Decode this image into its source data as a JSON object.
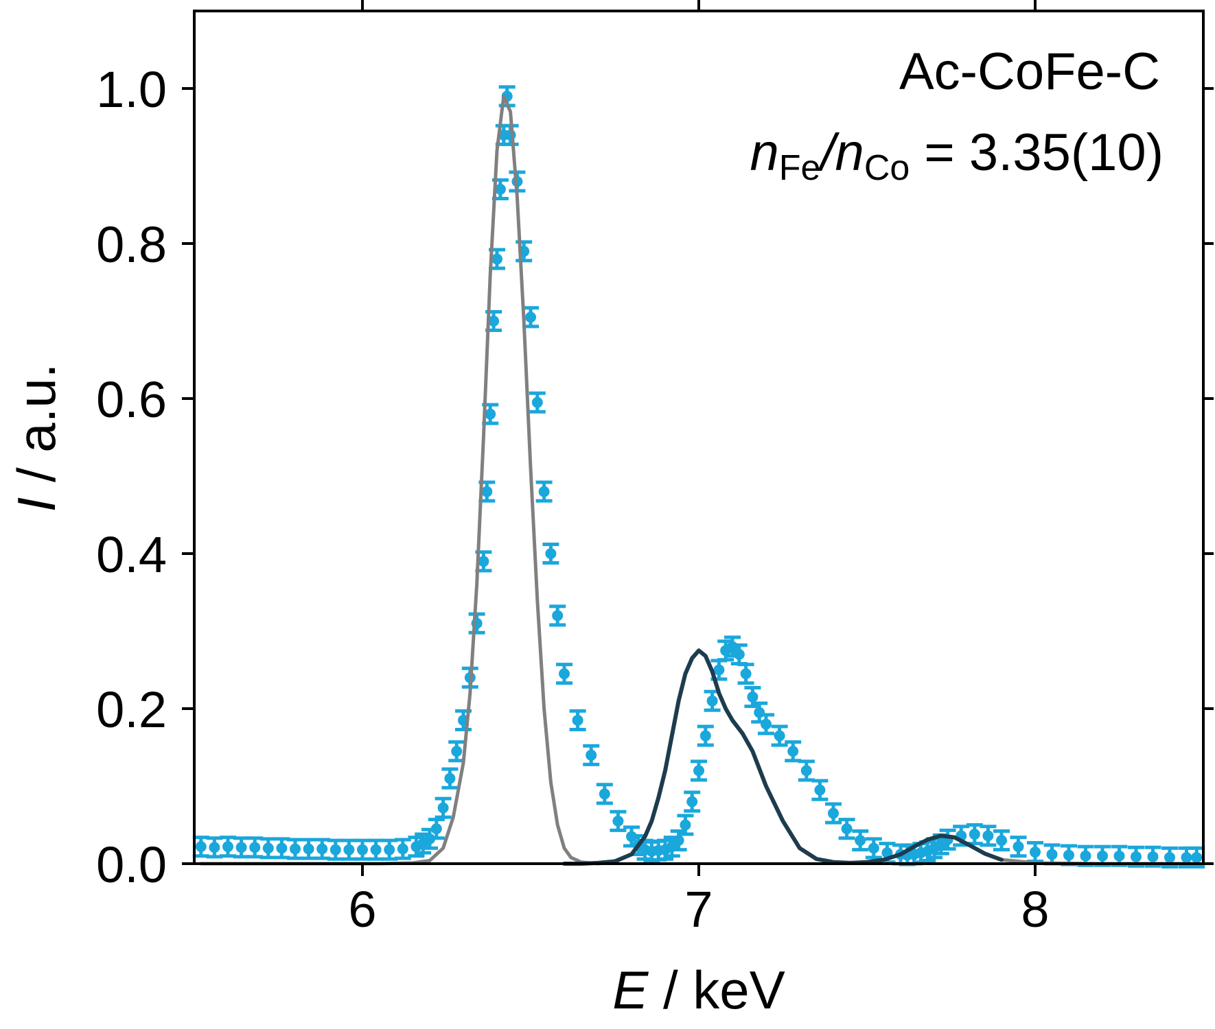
{
  "chart_data": {
    "type": "line",
    "xlabel": {
      "italic": "E",
      "rest": " / keV"
    },
    "ylabel": {
      "italic": "I",
      "rest": " / a.u."
    },
    "xlim": [
      5.5,
      8.5
    ],
    "ylim": [
      0.0,
      1.1
    ],
    "xticks": [
      6,
      7,
      8
    ],
    "xtick_labels": [
      "6",
      "7",
      "8"
    ],
    "yticks": [
      0.0,
      0.2,
      0.4,
      0.6,
      0.8,
      1.0
    ],
    "ytick_labels": [
      "0.0",
      "0.2",
      "0.4",
      "0.6",
      "0.8",
      "1.0"
    ],
    "grid": false,
    "annotations": {
      "sample": "Ac-CoFe-C",
      "ratio": {
        "n1": "n",
        "sub1": "Fe",
        "slash": "/",
        "n2": "n",
        "sub2": "Co",
        "value": " = 3.35(10)"
      }
    },
    "colors": {
      "data": "#1aa7dc",
      "fit_total": "#808080",
      "fit_fe": "#1d3c4e"
    },
    "series": [
      {
        "kind": "errorbar-points",
        "x": [
          5.52,
          5.56,
          5.6,
          5.64,
          5.68,
          5.72,
          5.76,
          5.8,
          5.84,
          5.88,
          5.92,
          5.96,
          6.0,
          6.04,
          6.08,
          6.12,
          6.16,
          6.18,
          6.2,
          6.22,
          6.24,
          6.26,
          6.28,
          6.3,
          6.32,
          6.34,
          6.36,
          6.37,
          6.38,
          6.39,
          6.4,
          6.41,
          6.42,
          6.43,
          6.44,
          6.46,
          6.48,
          6.5,
          6.52,
          6.54,
          6.56,
          6.58,
          6.6,
          6.64,
          6.68,
          6.72,
          6.76,
          6.8,
          6.82,
          6.84,
          6.86,
          6.88,
          6.9,
          6.92,
          6.94,
          6.96,
          6.98,
          7.0,
          7.02,
          7.04,
          7.06,
          7.08,
          7.1,
          7.12,
          7.14,
          7.16,
          7.18,
          7.2,
          7.24,
          7.28,
          7.32,
          7.36,
          7.4,
          7.44,
          7.48,
          7.52,
          7.56,
          7.6,
          7.62,
          7.64,
          7.66,
          7.68,
          7.7,
          7.72,
          7.74,
          7.78,
          7.82,
          7.86,
          7.9,
          7.95,
          8.0,
          8.05,
          8.1,
          8.15,
          8.2,
          8.25,
          8.3,
          8.35,
          8.4,
          8.45,
          8.48
        ],
        "y": [
          0.022,
          0.021,
          0.022,
          0.021,
          0.021,
          0.02,
          0.02,
          0.019,
          0.019,
          0.019,
          0.018,
          0.018,
          0.018,
          0.018,
          0.018,
          0.019,
          0.022,
          0.026,
          0.032,
          0.045,
          0.072,
          0.11,
          0.145,
          0.185,
          0.24,
          0.31,
          0.39,
          0.48,
          0.58,
          0.7,
          0.78,
          0.87,
          0.94,
          0.99,
          0.94,
          0.88,
          0.79,
          0.705,
          0.595,
          0.48,
          0.4,
          0.32,
          0.245,
          0.185,
          0.14,
          0.09,
          0.055,
          0.035,
          0.024,
          0.018,
          0.016,
          0.017,
          0.018,
          0.022,
          0.03,
          0.05,
          0.08,
          0.12,
          0.165,
          0.21,
          0.25,
          0.275,
          0.28,
          0.27,
          0.245,
          0.215,
          0.195,
          0.18,
          0.165,
          0.145,
          0.12,
          0.095,
          0.065,
          0.045,
          0.03,
          0.02,
          0.014,
          0.012,
          0.011,
          0.012,
          0.014,
          0.016,
          0.02,
          0.025,
          0.031,
          0.036,
          0.038,
          0.036,
          0.03,
          0.022,
          0.015,
          0.012,
          0.011,
          0.01,
          0.01,
          0.01,
          0.009,
          0.009,
          0.008,
          0.008,
          0.008
        ],
        "yerr": 0.012
      },
      {
        "kind": "fit-total",
        "x": [
          5.52,
          5.7,
          5.9,
          6.05,
          6.15,
          6.2,
          6.24,
          6.27,
          6.3,
          6.32,
          6.34,
          6.36,
          6.38,
          6.4,
          6.42,
          6.44,
          6.46,
          6.48,
          6.5,
          6.52,
          6.54,
          6.56,
          6.58,
          6.6,
          6.62,
          6.65,
          6.7,
          6.75,
          6.8,
          6.84,
          6.86,
          6.88,
          6.9,
          6.92,
          6.94,
          6.96,
          6.98,
          7.0,
          7.02,
          7.04,
          7.06,
          7.08,
          7.1,
          7.13,
          7.16,
          7.2,
          7.25,
          7.3,
          7.35,
          7.4,
          7.45,
          7.5,
          7.55,
          7.6,
          7.64,
          7.68,
          7.72,
          7.76,
          7.8,
          7.85,
          7.9,
          8.0,
          8.2,
          8.48
        ],
        "y": [
          0.0,
          0.0,
          0.0,
          0.0,
          0.001,
          0.004,
          0.02,
          0.06,
          0.13,
          0.22,
          0.36,
          0.55,
          0.76,
          0.92,
          0.99,
          0.97,
          0.86,
          0.7,
          0.51,
          0.34,
          0.2,
          0.105,
          0.05,
          0.02,
          0.008,
          0.002,
          0.0,
          0.002,
          0.012,
          0.035,
          0.055,
          0.085,
          0.12,
          0.165,
          0.21,
          0.245,
          0.265,
          0.275,
          0.268,
          0.248,
          0.22,
          0.2,
          0.185,
          0.168,
          0.145,
          0.1,
          0.055,
          0.02,
          0.006,
          0.002,
          0.001,
          0.002,
          0.005,
          0.012,
          0.022,
          0.031,
          0.036,
          0.034,
          0.025,
          0.013,
          0.005,
          0.001,
          0.0,
          0.0
        ]
      },
      {
        "kind": "fit-fe",
        "x": [
          6.6,
          6.65,
          6.7,
          6.75,
          6.8,
          6.84,
          6.86,
          6.88,
          6.9,
          6.92,
          6.94,
          6.96,
          6.98,
          7.0,
          7.02,
          7.04,
          7.06,
          7.08,
          7.1,
          7.13,
          7.16,
          7.2,
          7.25,
          7.3,
          7.35,
          7.4,
          7.45,
          7.5,
          7.55,
          7.6,
          7.64,
          7.68,
          7.72,
          7.76,
          7.8,
          7.85,
          7.9
        ],
        "y": [
          0.0,
          0.0,
          0.001,
          0.003,
          0.012,
          0.035,
          0.055,
          0.085,
          0.12,
          0.165,
          0.21,
          0.245,
          0.265,
          0.275,
          0.268,
          0.248,
          0.22,
          0.2,
          0.185,
          0.168,
          0.145,
          0.1,
          0.055,
          0.02,
          0.006,
          0.002,
          0.001,
          0.002,
          0.005,
          0.012,
          0.022,
          0.031,
          0.036,
          0.034,
          0.025,
          0.013,
          0.005
        ]
      }
    ]
  }
}
